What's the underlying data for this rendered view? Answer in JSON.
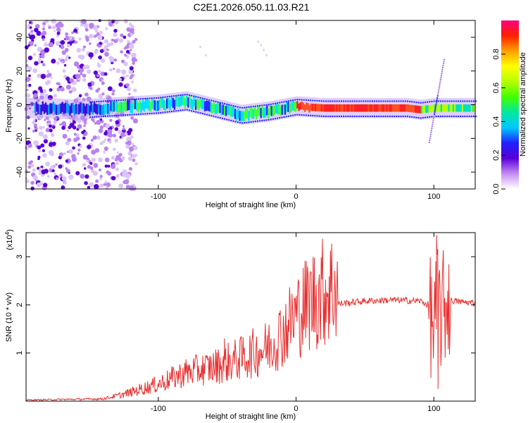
{
  "title": "C2E1.2026.050.11.03.R21",
  "chart_data": [
    {
      "type": "heatmap",
      "name": "spectrogram",
      "xlabel": "Height of straight line (km)",
      "ylabel": "Frequency (Hz)",
      "xlim": [
        -196,
        130
      ],
      "ylim": [
        -50,
        50
      ],
      "xticks": [
        -100,
        0,
        100
      ],
      "yticks": [
        -40,
        -20,
        0,
        20,
        40
      ],
      "colorbar": {
        "label": "Normalized spectral amplitude",
        "range": [
          0,
          1
        ],
        "ticks": [
          "0.0",
          "0.2",
          "0.4",
          "0.6",
          "0.8"
        ],
        "colors": [
          "#ffffff",
          "#c58cf2",
          "#5a00d8",
          "#2020ff",
          "#00c8ff",
          "#00e8a0",
          "#40ff00",
          "#b4ff00",
          "#ffff00",
          "#ffa000",
          "#ff2000",
          "#ff0080"
        ]
      },
      "ridge": {
        "description_points_x": [
          -180,
          -160,
          -140,
          -120,
          -100,
          -80,
          -60,
          -40,
          -20,
          0,
          20,
          40,
          60,
          80,
          90,
          100,
          110,
          130
        ],
        "description_points_y": [
          -2,
          -3,
          -2,
          -1,
          0,
          2,
          -2,
          -6,
          -4,
          -1,
          -2,
          -2,
          -2,
          -2,
          -3,
          -2,
          -2,
          -2
        ]
      }
    },
    {
      "type": "line",
      "name": "snr",
      "xlabel": "Height of straight line (km)",
      "ylabel": "SNR (10 * v/v)",
      "multiplier": "(x10",
      "multiplier_exp": "4",
      "multiplier_close": ")",
      "xlim": [
        -196,
        130
      ],
      "ylim": [
        0,
        3.5
      ],
      "xticks": [
        -100,
        0,
        100
      ],
      "yticks": [
        1,
        2,
        3
      ],
      "color": "#e83030",
      "envelope_x": [
        -196,
        -140,
        -125,
        -100,
        -80,
        -60,
        -40,
        -20,
        -10,
        0,
        10,
        20,
        30,
        50,
        70,
        90,
        96,
        100,
        103,
        106,
        110,
        115,
        120,
        130
      ],
      "envelope_y": [
        0.02,
        0.04,
        0.12,
        0.3,
        0.5,
        0.6,
        0.75,
        0.95,
        1.2,
        1.5,
        1.75,
        1.92,
        2.02,
        2.08,
        2.1,
        2.08,
        2.0,
        1.5,
        2.0,
        1.8,
        2.1,
        2.08,
        2.06,
        2.04
      ],
      "notable_points": [
        {
          "x": 102,
          "y": 3.45
        },
        {
          "x": 103,
          "y": 0.25
        },
        {
          "x": -52,
          "y": 1.3
        }
      ]
    }
  ]
}
